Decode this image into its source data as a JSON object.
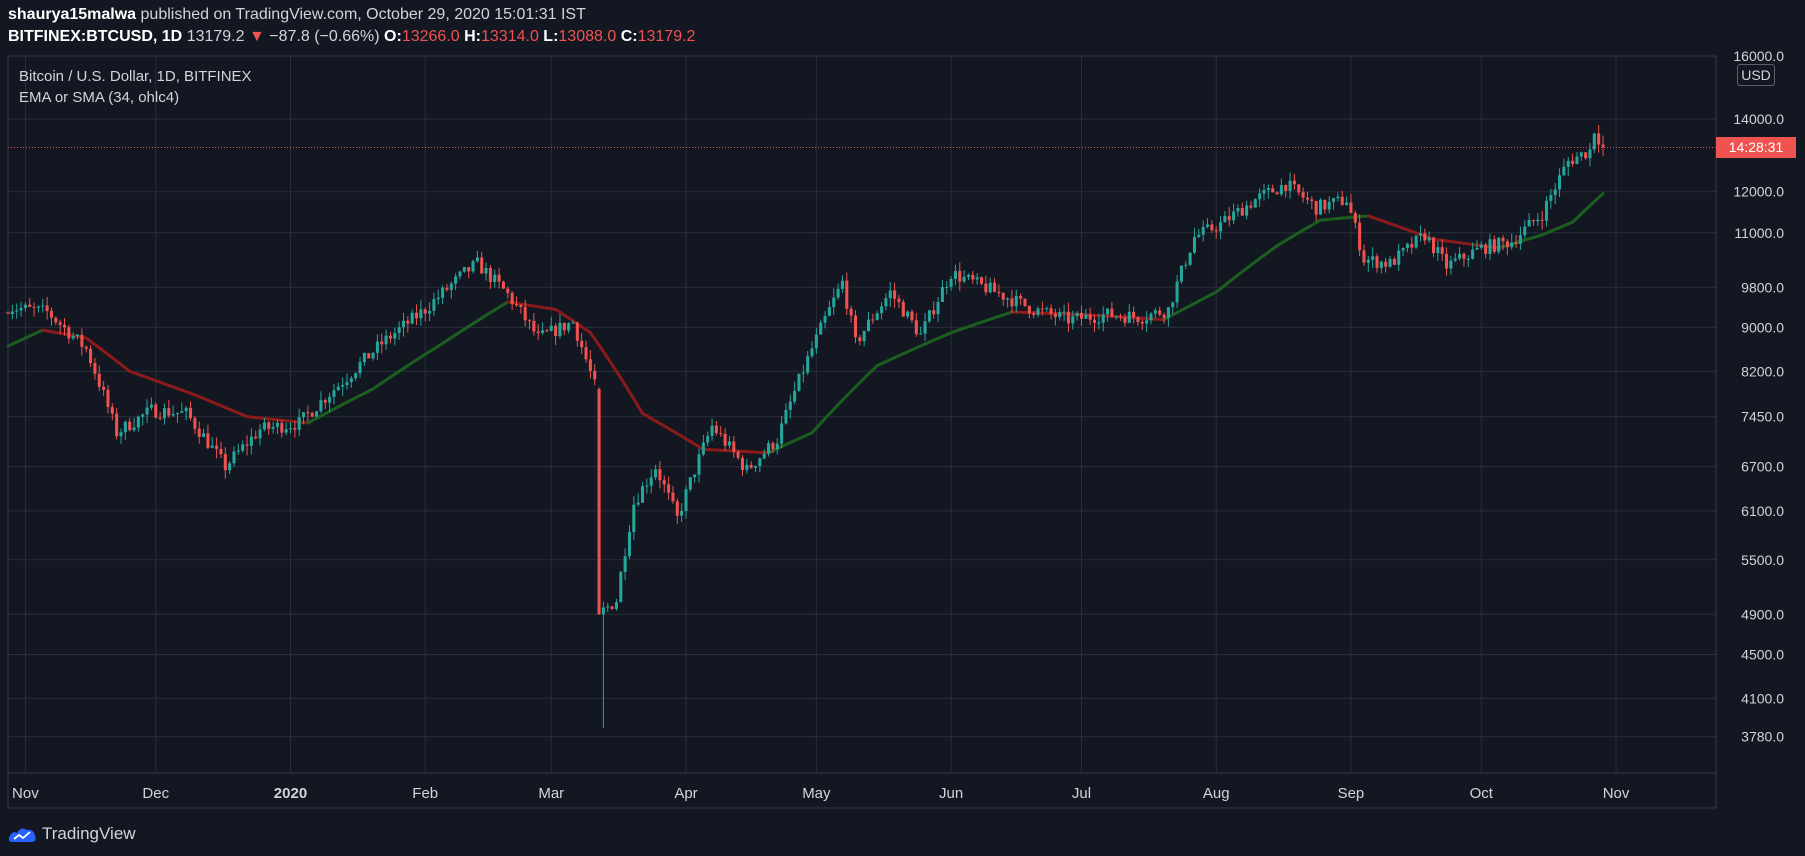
{
  "header": {
    "author": "shaurya15malwa",
    "published_text": "published on TradingView.com, October 29, 2020 15:01:31 IST",
    "symbol": "BITFINEX:BTCUSD, 1D",
    "last": "13179.2",
    "change_arrow": "▼",
    "change": "−87.8 (−0.66%)",
    "o_label": "O:",
    "o_value": "13266.0",
    "h_label": "H:",
    "h_value": "13314.0",
    "l_label": "L:",
    "l_value": "13088.0",
    "c_label": "C:",
    "c_value": "13179.2"
  },
  "legend": {
    "title": "Bitcoin / U.S. Dollar, 1D, BITFINEX",
    "indicator": "EMA or SMA (34, ohlc4)"
  },
  "price_axis": {
    "currency": "USD",
    "countdown": "14:28:31",
    "current_price": 13179.2
  },
  "footer": {
    "brand": "TradingView",
    "logo_icon": "tradingview-logo-icon"
  },
  "colors": {
    "background": "#131722",
    "grid": "#2a2e39",
    "up": "#26a69a",
    "down": "#ef5350",
    "ma_up": "#1b5e20",
    "ma_down": "#8b1a1a"
  },
  "chart_data": {
    "type": "candlestick",
    "ylim": [
      3500,
      16000
    ],
    "y_scale": "log",
    "y_ticks": [
      3780,
      4100,
      4500,
      4900,
      5500,
      6100,
      6700,
      7450,
      8200,
      9000,
      9800,
      11000,
      12000,
      14000,
      16000
    ],
    "x_range": [
      "2019-10-28",
      "2020-11-24"
    ],
    "x_ticks": [
      {
        "label": "Nov",
        "date": "2019-11-01"
      },
      {
        "label": "Dec",
        "date": "2019-12-01"
      },
      {
        "label": "2020",
        "date": "2020-01-01"
      },
      {
        "label": "Feb",
        "date": "2020-02-01"
      },
      {
        "label": "Mar",
        "date": "2020-03-01"
      },
      {
        "label": "Apr",
        "date": "2020-04-01"
      },
      {
        "label": "May",
        "date": "2020-05-01"
      },
      {
        "label": "Jun",
        "date": "2020-06-01"
      },
      {
        "label": "Jul",
        "date": "2020-07-01"
      },
      {
        "label": "Aug",
        "date": "2020-08-01"
      },
      {
        "label": "Sep",
        "date": "2020-09-01"
      },
      {
        "label": "Oct",
        "date": "2020-10-01"
      },
      {
        "label": "Nov",
        "date": "2020-11-01"
      }
    ],
    "close_anchors": [
      {
        "date": "2019-10-28",
        "close": 9400
      },
      {
        "date": "2019-11-06",
        "close": 9300
      },
      {
        "date": "2019-11-15",
        "close": 8600
      },
      {
        "date": "2019-11-22",
        "close": 7200
      },
      {
        "date": "2019-11-30",
        "close": 7550
      },
      {
        "date": "2019-12-08",
        "close": 7500
      },
      {
        "date": "2019-12-17",
        "close": 6700
      },
      {
        "date": "2019-12-25",
        "close": 7250
      },
      {
        "date": "2020-01-03",
        "close": 7350
      },
      {
        "date": "2020-01-14",
        "close": 8100
      },
      {
        "date": "2020-01-22",
        "close": 8700
      },
      {
        "date": "2020-02-01",
        "close": 9350
      },
      {
        "date": "2020-02-10",
        "close": 10100
      },
      {
        "date": "2020-02-13",
        "close": 10300
      },
      {
        "date": "2020-02-20",
        "close": 9650
      },
      {
        "date": "2020-02-27",
        "close": 8800
      },
      {
        "date": "2020-03-06",
        "close": 9100
      },
      {
        "date": "2020-03-11",
        "close": 7950
      },
      {
        "date": "2020-03-12",
        "close": 4900
      },
      {
        "date": "2020-03-16",
        "close": 5050
      },
      {
        "date": "2020-03-20",
        "close": 6200
      },
      {
        "date": "2020-03-25",
        "close": 6700
      },
      {
        "date": "2020-03-30",
        "close": 6000
      },
      {
        "date": "2020-04-07",
        "close": 7300
      },
      {
        "date": "2020-04-15",
        "close": 6650
      },
      {
        "date": "2020-04-22",
        "close": 7100
      },
      {
        "date": "2020-04-30",
        "close": 8600
      },
      {
        "date": "2020-05-07",
        "close": 9900
      },
      {
        "date": "2020-05-10",
        "close": 8700
      },
      {
        "date": "2020-05-18",
        "close": 9700
      },
      {
        "date": "2020-05-25",
        "close": 8850
      },
      {
        "date": "2020-06-01",
        "close": 10100
      },
      {
        "date": "2020-06-10",
        "close": 9750
      },
      {
        "date": "2020-06-20",
        "close": 9350
      },
      {
        "date": "2020-06-28",
        "close": 9150
      },
      {
        "date": "2020-07-07",
        "close": 9250
      },
      {
        "date": "2020-07-15",
        "close": 9200
      },
      {
        "date": "2020-07-21",
        "close": 9350
      },
      {
        "date": "2020-07-27",
        "close": 10900
      },
      {
        "date": "2020-08-02",
        "close": 11200
      },
      {
        "date": "2020-08-10",
        "close": 11800
      },
      {
        "date": "2020-08-17",
        "close": 12200
      },
      {
        "date": "2020-08-24",
        "close": 11600
      },
      {
        "date": "2020-08-31",
        "close": 11800
      },
      {
        "date": "2020-09-04",
        "close": 10400
      },
      {
        "date": "2020-09-10",
        "close": 10300
      },
      {
        "date": "2020-09-18",
        "close": 10950
      },
      {
        "date": "2020-09-23",
        "close": 10250
      },
      {
        "date": "2020-10-01",
        "close": 10650
      },
      {
        "date": "2020-10-08",
        "close": 10800
      },
      {
        "date": "2020-10-15",
        "close": 11450
      },
      {
        "date": "2020-10-21",
        "close": 12800
      },
      {
        "date": "2020-10-26",
        "close": 13100
      },
      {
        "date": "2020-10-27",
        "close": 13700
      },
      {
        "date": "2020-10-29",
        "close": 13179
      }
    ],
    "ma_anchors": [
      {
        "date": "2019-10-28",
        "value": 8650
      },
      {
        "date": "2019-11-05",
        "value": 8950
      },
      {
        "date": "2019-11-15",
        "value": 8800
      },
      {
        "date": "2019-11-25",
        "value": 8200
      },
      {
        "date": "2019-12-10",
        "value": 7800
      },
      {
        "date": "2019-12-22",
        "value": 7450
      },
      {
        "date": "2020-01-05",
        "value": 7350
      },
      {
        "date": "2020-01-20",
        "value": 7900
      },
      {
        "date": "2020-02-05",
        "value": 8700
      },
      {
        "date": "2020-02-20",
        "value": 9500
      },
      {
        "date": "2020-03-02",
        "value": 9350
      },
      {
        "date": "2020-03-10",
        "value": 8900
      },
      {
        "date": "2020-03-22",
        "value": 7500
      },
      {
        "date": "2020-04-05",
        "value": 6950
      },
      {
        "date": "2020-04-20",
        "value": 6900
      },
      {
        "date": "2020-04-30",
        "value": 7200
      },
      {
        "date": "2020-05-15",
        "value": 8300
      },
      {
        "date": "2020-06-01",
        "value": 8900
      },
      {
        "date": "2020-06-15",
        "value": 9300
      },
      {
        "date": "2020-07-01",
        "value": 9250
      },
      {
        "date": "2020-07-20",
        "value": 9150
      },
      {
        "date": "2020-08-01",
        "value": 9700
      },
      {
        "date": "2020-08-15",
        "value": 10700
      },
      {
        "date": "2020-08-25",
        "value": 11300
      },
      {
        "date": "2020-09-05",
        "value": 11400
      },
      {
        "date": "2020-09-20",
        "value": 10850
      },
      {
        "date": "2020-10-05",
        "value": 10650
      },
      {
        "date": "2020-10-15",
        "value": 10950
      },
      {
        "date": "2020-10-22",
        "value": 11250
      },
      {
        "date": "2020-10-29",
        "value": 11950
      }
    ],
    "title": "Bitcoin / U.S. Dollar, 1D, BITFINEX"
  }
}
